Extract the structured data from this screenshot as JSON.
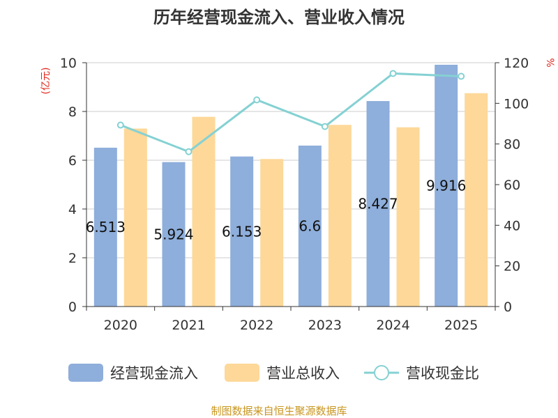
{
  "chart_data": {
    "type": "bar",
    "title": "历年经营现金流入、营业收入情况",
    "categories": [
      "2020",
      "2021",
      "2022",
      "2023",
      "2024",
      "2025"
    ],
    "series": [
      {
        "name": "经营现金流入",
        "type": "bar",
        "axis": "left",
        "color": "#8eaedb",
        "values": [
          6.513,
          5.924,
          6.153,
          6.6,
          8.427,
          9.916
        ],
        "labels": [
          "6.513",
          "5.924",
          "6.153",
          "6.6",
          "8.427",
          "9.916"
        ]
      },
      {
        "name": "营业总收入",
        "type": "bar",
        "axis": "left",
        "color": "#fdd899",
        "values": [
          7.3,
          7.78,
          6.05,
          7.45,
          7.35,
          8.75
        ]
      },
      {
        "name": "营收现金比",
        "type": "line",
        "axis": "right",
        "color": "#85d1d3",
        "values": [
          89.3,
          76.2,
          101.7,
          88.6,
          114.7,
          113.3
        ]
      }
    ],
    "y_left": {
      "label": "(亿元)",
      "ylim": [
        0,
        10
      ],
      "ticks": [
        "0",
        "2",
        "4",
        "6",
        "8",
        "10"
      ]
    },
    "y_right": {
      "label": "%",
      "ylim": [
        0,
        120
      ],
      "ticks": [
        "0",
        "20",
        "40",
        "60",
        "80",
        "100",
        "120"
      ]
    },
    "grid": true,
    "legend_position": "bottom"
  },
  "footer": {
    "source": "制图数据来自恒生聚源数据库"
  }
}
